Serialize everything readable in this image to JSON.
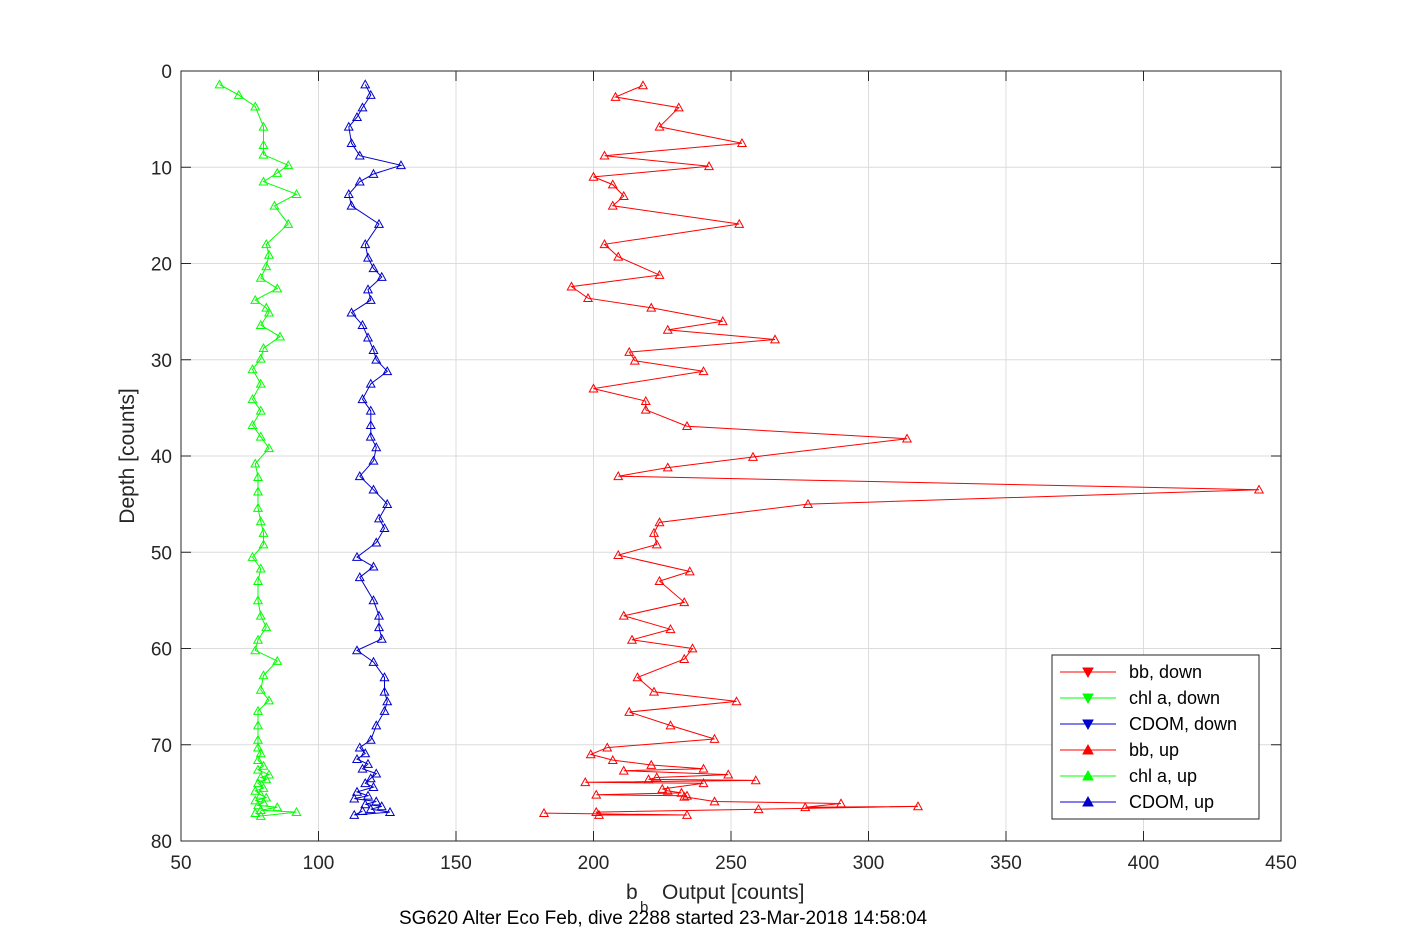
{
  "chart_data": {
    "type": "line",
    "caption": "SG620 Alter Eco Feb, dive 2288 started 23-Mar-2018 14:58:04",
    "xlabel": "Output [counts]",
    "xlabel_prefix": "b",
    "xlabel_subscript": "b",
    "ylabel": "Depth [counts]",
    "xlim": [
      50,
      450
    ],
    "ylim": [
      0,
      80
    ],
    "y_reversed": true,
    "grid": true,
    "legend_position": "bottom-right",
    "x_ticks": [
      50,
      100,
      150,
      200,
      250,
      300,
      350,
      400,
      450
    ],
    "y_ticks": [
      0,
      10,
      20,
      30,
      40,
      50,
      60,
      70,
      80
    ],
    "series": [
      {
        "name": "bb, down",
        "color": "#ff0000",
        "marker": "triangle-down",
        "points": []
      },
      {
        "name": "chl a, down",
        "color": "#00ff00",
        "marker": "triangle-down",
        "points": []
      },
      {
        "name": "CDOM, down",
        "color": "#0000cc",
        "marker": "triangle-down",
        "points": []
      },
      {
        "name": "bb, up",
        "color": "#ff0000",
        "marker": "triangle-up",
        "points": [
          [
            218,
            1.5
          ],
          [
            208,
            2.7
          ],
          [
            231,
            3.8
          ],
          [
            224,
            5.8
          ],
          [
            254,
            7.5
          ],
          [
            204,
            8.8
          ],
          [
            242,
            9.9
          ],
          [
            200,
            11
          ],
          [
            207,
            11.8
          ],
          [
            211,
            13
          ],
          [
            207,
            14
          ],
          [
            253,
            15.9
          ],
          [
            204,
            18
          ],
          [
            209,
            19.3
          ],
          [
            224,
            21.2
          ],
          [
            192,
            22.4
          ],
          [
            198,
            23.6
          ],
          [
            221,
            24.6
          ],
          [
            247,
            26
          ],
          [
            227,
            26.9
          ],
          [
            266,
            27.9
          ],
          [
            213,
            29.2
          ],
          [
            215,
            30.1
          ],
          [
            240,
            31.2
          ],
          [
            200,
            33
          ],
          [
            219,
            34.3
          ],
          [
            219,
            35.2
          ],
          [
            234,
            36.9
          ],
          [
            314,
            38.2
          ],
          [
            258,
            40.1
          ],
          [
            227,
            41.2
          ],
          [
            209,
            42.1
          ],
          [
            442,
            43.5
          ],
          [
            278,
            45
          ],
          [
            224,
            46.9
          ],
          [
            222,
            48
          ],
          [
            223,
            49.2
          ],
          [
            209,
            50.3
          ],
          [
            235,
            52
          ],
          [
            224,
            53
          ],
          [
            233,
            55.2
          ],
          [
            211,
            56.6
          ],
          [
            228,
            58
          ],
          [
            214,
            59.1
          ],
          [
            236,
            60
          ],
          [
            233,
            61.1
          ],
          [
            216,
            63
          ],
          [
            222,
            64.5
          ],
          [
            252,
            65.5
          ],
          [
            213,
            66.6
          ],
          [
            228,
            68
          ],
          [
            244,
            69.4
          ],
          [
            205,
            70.3
          ],
          [
            199,
            71
          ],
          [
            207,
            71.6
          ],
          [
            221,
            72.1
          ],
          [
            240,
            72.5
          ],
          [
            211,
            72.7
          ],
          [
            249,
            73.1
          ],
          [
            223,
            73.4
          ],
          [
            220,
            73.6
          ],
          [
            259,
            73.7
          ],
          [
            197,
            73.9
          ],
          [
            240,
            74
          ],
          [
            225,
            74.6
          ],
          [
            227,
            74.8
          ],
          [
            232,
            75
          ],
          [
            201,
            75.2
          ],
          [
            234,
            75.3
          ],
          [
            233,
            75.4
          ],
          [
            244,
            75.9
          ],
          [
            290,
            76.1
          ],
          [
            277,
            76.5
          ],
          [
            318,
            76.4
          ],
          [
            260,
            76.7
          ],
          [
            201,
            77
          ],
          [
            202,
            77.3
          ],
          [
            234,
            77.3
          ],
          [
            182,
            77.1
          ]
        ]
      },
      {
        "name": "chl a, up",
        "color": "#00ff00",
        "marker": "triangle-up",
        "points": [
          [
            64,
            1.4
          ],
          [
            71,
            2.5
          ],
          [
            77,
            3.7
          ],
          [
            80,
            5.8
          ],
          [
            80,
            7.7
          ],
          [
            80,
            8.7
          ],
          [
            89,
            9.8
          ],
          [
            85,
            10.6
          ],
          [
            80,
            11.5
          ],
          [
            92,
            12.8
          ],
          [
            84,
            14
          ],
          [
            89,
            15.9
          ],
          [
            81,
            18
          ],
          [
            82,
            19.1
          ],
          [
            81,
            20.3
          ],
          [
            79,
            21.5
          ],
          [
            85,
            22.6
          ],
          [
            77,
            23.8
          ],
          [
            81,
            24.6
          ],
          [
            82,
            25.1
          ],
          [
            79,
            26.4
          ],
          [
            86,
            27.6
          ],
          [
            80,
            28.8
          ],
          [
            79,
            29.9
          ],
          [
            76,
            31
          ],
          [
            79,
            32.5
          ],
          [
            76,
            34.1
          ],
          [
            79,
            35.3
          ],
          [
            76,
            36.8
          ],
          [
            79,
            38
          ],
          [
            82,
            39.2
          ],
          [
            77,
            40.8
          ],
          [
            78,
            42.2
          ],
          [
            78,
            43.7
          ],
          [
            78,
            45.4
          ],
          [
            79,
            46.8
          ],
          [
            80,
            48
          ],
          [
            80,
            49.2
          ],
          [
            76,
            50.5
          ],
          [
            79,
            51.7
          ],
          [
            78,
            53
          ],
          [
            78,
            55
          ],
          [
            79,
            56.6
          ],
          [
            81,
            57.8
          ],
          [
            78,
            59.1
          ],
          [
            77,
            60.2
          ],
          [
            85,
            61.3
          ],
          [
            80,
            62.8
          ],
          [
            79,
            64.3
          ],
          [
            82,
            65.4
          ],
          [
            78,
            66.5
          ],
          [
            78,
            68
          ],
          [
            78,
            69.5
          ],
          [
            78,
            70.3
          ],
          [
            79,
            70.9
          ],
          [
            78,
            71.6
          ],
          [
            80,
            72.2
          ],
          [
            78,
            72.6
          ],
          [
            82,
            73.1
          ],
          [
            79,
            73.4
          ],
          [
            81,
            73.6
          ],
          [
            78,
            74
          ],
          [
            80,
            74.5
          ],
          [
            77,
            74.8
          ],
          [
            79,
            75.2
          ],
          [
            81,
            75.5
          ],
          [
            77,
            75.8
          ],
          [
            80,
            76
          ],
          [
            78,
            76.3
          ],
          [
            85,
            76.5
          ],
          [
            79,
            76.8
          ],
          [
            92,
            77
          ],
          [
            79,
            77.4
          ],
          [
            77,
            77.1
          ]
        ]
      },
      {
        "name": "CDOM, up",
        "color": "#0000cc",
        "marker": "triangle-up",
        "points": [
          [
            117,
            1.4
          ],
          [
            119,
            2.5
          ],
          [
            116,
            3.8
          ],
          [
            114,
            4.8
          ],
          [
            111,
            5.8
          ],
          [
            112,
            7.5
          ],
          [
            115,
            8.8
          ],
          [
            130,
            9.8
          ],
          [
            120,
            10.7
          ],
          [
            115,
            11.5
          ],
          [
            111,
            12.8
          ],
          [
            112,
            14
          ],
          [
            122,
            15.9
          ],
          [
            117,
            18
          ],
          [
            118,
            19.4
          ],
          [
            120,
            20.5
          ],
          [
            123,
            21.4
          ],
          [
            118,
            22.7
          ],
          [
            119,
            23.8
          ],
          [
            112,
            25.1
          ],
          [
            116,
            26.4
          ],
          [
            118,
            27.7
          ],
          [
            120,
            29
          ],
          [
            121,
            30
          ],
          [
            125,
            31.2
          ],
          [
            119,
            32.5
          ],
          [
            116,
            34.1
          ],
          [
            119,
            35.3
          ],
          [
            119,
            36.8
          ],
          [
            119,
            38
          ],
          [
            121,
            39.1
          ],
          [
            120,
            40.5
          ],
          [
            115,
            42.1
          ],
          [
            120,
            43.5
          ],
          [
            125,
            45
          ],
          [
            122,
            46.5
          ],
          [
            124,
            47.5
          ],
          [
            121,
            49
          ],
          [
            114,
            50.5
          ],
          [
            120,
            51.5
          ],
          [
            115,
            52.6
          ],
          [
            120,
            55
          ],
          [
            122,
            56.6
          ],
          [
            122,
            57.8
          ],
          [
            123,
            59
          ],
          [
            114,
            60.2
          ],
          [
            120,
            61.4
          ],
          [
            124,
            63
          ],
          [
            124,
            64.5
          ],
          [
            125,
            65.5
          ],
          [
            124,
            66.5
          ],
          [
            121,
            68
          ],
          [
            119,
            69.5
          ],
          [
            115,
            70.3
          ],
          [
            117,
            70.9
          ],
          [
            114,
            71.5
          ],
          [
            118,
            72
          ],
          [
            116,
            72.5
          ],
          [
            121,
            73
          ],
          [
            119,
            73.5
          ],
          [
            117,
            74
          ],
          [
            120,
            74.4
          ],
          [
            114,
            74.9
          ],
          [
            118,
            75.3
          ],
          [
            113,
            75.6
          ],
          [
            121,
            75.9
          ],
          [
            117,
            76.2
          ],
          [
            123,
            76.4
          ],
          [
            119,
            76.7
          ],
          [
            126,
            77
          ],
          [
            113,
            77.3
          ],
          [
            116,
            76.9
          ]
        ]
      }
    ]
  }
}
